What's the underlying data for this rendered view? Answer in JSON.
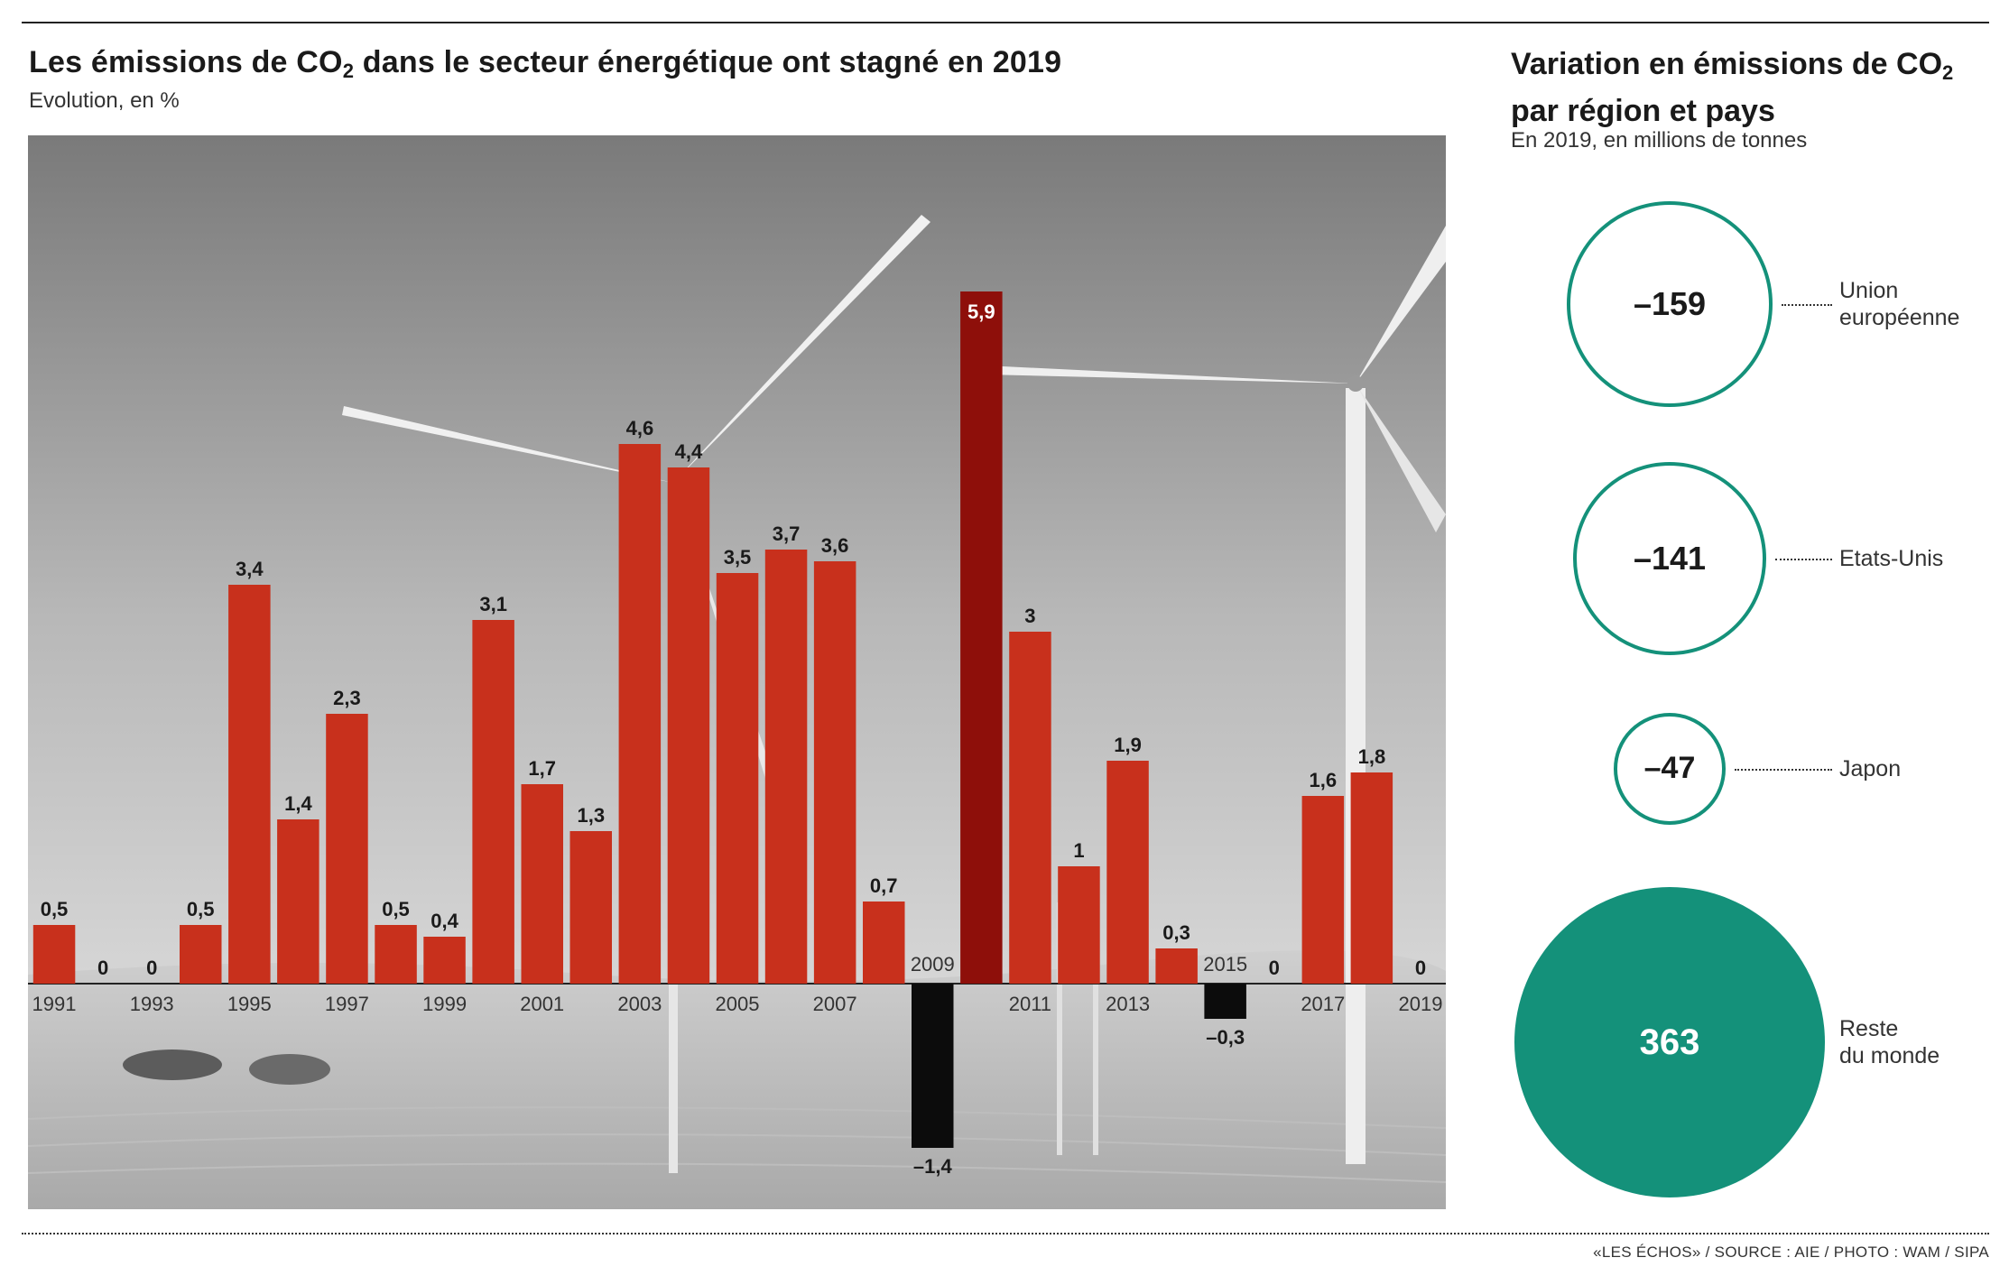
{
  "left_chart": {
    "title": "Les émissions de CO",
    "title_sub": "2",
    "title_rest": " dans le secteur énergétique ont stagné en 2019",
    "subtitle": "Evolution, en %"
  },
  "right_panel": {
    "title_line1": "Variation en émissions de CO",
    "title_sub": "2",
    "title_line2": "par région et pays",
    "subtitle": "En 2019, en millions de tonnes",
    "bubbles": [
      {
        "value": "–159",
        "label_lines": [
          "Union",
          "européenne"
        ]
      },
      {
        "value": "–141",
        "label_lines": [
          "Etats-Unis"
        ]
      },
      {
        "value": "–47",
        "label_lines": [
          "Japon"
        ]
      },
      {
        "value": "363",
        "label_lines": [
          "Reste",
          "du monde"
        ]
      }
    ]
  },
  "source": "«LES ÉCHOS» / SOURCE : AIE / PHOTO : WAM / SIPA",
  "colors": {
    "positive_bar": "#c8301c",
    "highlight_bar": "#8e0f0a",
    "negative_bar": "#0c0c0c",
    "bubble_green": "#14917a"
  },
  "chart_data": [
    {
      "type": "bar",
      "title": "Les émissions de CO2 dans le secteur énergétique ont stagné en 2019",
      "subtitle": "Evolution, en %",
      "xlabel": "",
      "ylabel": "",
      "ylim": [
        -1.4,
        5.9
      ],
      "grid": false,
      "x_tick_labels": [
        "1991",
        "1993",
        "1995",
        "1997",
        "1999",
        "2001",
        "2003",
        "2005",
        "2007",
        "2009",
        "2011",
        "2013",
        "2015",
        "2017",
        "2019"
      ],
      "categories": [
        "1991",
        "1992",
        "1993",
        "1994",
        "1995",
        "1996",
        "1997",
        "1998",
        "1999",
        "2000",
        "2001",
        "2002",
        "2003",
        "2004",
        "2005",
        "2006",
        "2007",
        "2008",
        "2009",
        "2010",
        "2011",
        "2012",
        "2013",
        "2014",
        "2015",
        "2016",
        "2017",
        "2018",
        "2019"
      ],
      "values": [
        0.5,
        0,
        0,
        0.5,
        3.4,
        1.4,
        2.3,
        0.5,
        0.4,
        3.1,
        1.7,
        1.3,
        4.6,
        4.4,
        3.5,
        3.7,
        3.6,
        0.7,
        -1.4,
        5.9,
        3,
        1,
        1.9,
        0.3,
        -0.3,
        0,
        1.6,
        1.8,
        0
      ],
      "value_labels": [
        "0,5",
        "0",
        "0",
        "0,5",
        "3,4",
        "1,4",
        "2,3",
        "0,5",
        "0,4",
        "3,1",
        "1,7",
        "1,3",
        "4,6",
        "4,4",
        "3,5",
        "3,7",
        "3,6",
        "0,7",
        "–1,4",
        "5,9",
        "3",
        "1",
        "1,9",
        "0,3",
        "–0,3",
        "0",
        "1,6",
        "1,8",
        "0"
      ]
    },
    {
      "type": "bubble",
      "title": "Variation en émissions de CO2 par région et pays",
      "subtitle": "En 2019, en millions de tonnes",
      "categories": [
        "Union européenne",
        "Etats-Unis",
        "Japon",
        "Reste du monde"
      ],
      "values": [
        -159,
        -141,
        -47,
        363
      ]
    }
  ]
}
